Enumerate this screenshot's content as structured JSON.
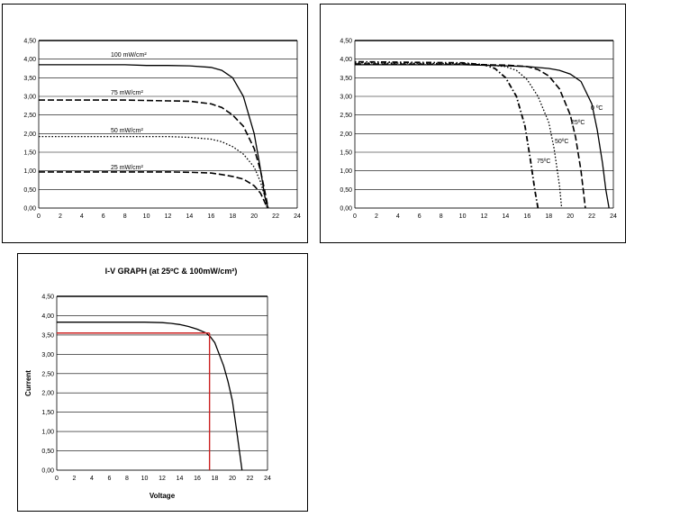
{
  "chart_data": [
    {
      "type": "line",
      "title": "",
      "xlabel": "",
      "ylabel": "",
      "xlim": [
        0,
        24
      ],
      "ylim": [
        0,
        4.5
      ],
      "x_ticks": [
        "0",
        "2",
        "4",
        "6",
        "8",
        "10",
        "12",
        "14",
        "16",
        "18",
        "20",
        "22",
        "24"
      ],
      "y_ticks": [
        "0,00",
        "0,50",
        "1,00",
        "1,50",
        "2,00",
        "2,50",
        "3,00",
        "3,50",
        "4,00",
        "4,50"
      ],
      "grid": "horizontal",
      "series": [
        {
          "name": "100 mW/cm²",
          "style": "solid",
          "points": [
            [
              0,
              3.85
            ],
            [
              8,
              3.85
            ],
            [
              10,
              3.83
            ],
            [
              12,
              3.83
            ],
            [
              14,
              3.82
            ],
            [
              16,
              3.78
            ],
            [
              17,
              3.7
            ],
            [
              18,
              3.5
            ],
            [
              19,
              3.0
            ],
            [
              20,
              2.0
            ],
            [
              20.5,
              1.2
            ],
            [
              21,
              0.3
            ],
            [
              21.3,
              0
            ]
          ]
        },
        {
          "name": "75 mW/cm²",
          "style": "dashed",
          "points": [
            [
              0,
              2.9
            ],
            [
              8,
              2.9
            ],
            [
              12,
              2.88
            ],
            [
              14,
              2.87
            ],
            [
              16,
              2.8
            ],
            [
              17,
              2.7
            ],
            [
              18,
              2.5
            ],
            [
              19,
              2.2
            ],
            [
              20,
              1.6
            ],
            [
              20.6,
              1.0
            ],
            [
              21.1,
              0.3
            ],
            [
              21.3,
              0
            ]
          ]
        },
        {
          "name": "50 mW/cm²",
          "style": "dotted",
          "points": [
            [
              0,
              1.92
            ],
            [
              8,
              1.92
            ],
            [
              12,
              1.92
            ],
            [
              14,
              1.9
            ],
            [
              16,
              1.85
            ],
            [
              17,
              1.78
            ],
            [
              18,
              1.65
            ],
            [
              19,
              1.45
            ],
            [
              20,
              1.1
            ],
            [
              20.6,
              0.7
            ],
            [
              21,
              0.3
            ],
            [
              21.2,
              0
            ]
          ]
        },
        {
          "name": "25 mW/cm²",
          "style": "dashed",
          "points": [
            [
              0,
              0.97
            ],
            [
              8,
              0.97
            ],
            [
              12,
              0.97
            ],
            [
              14,
              0.96
            ],
            [
              16,
              0.94
            ],
            [
              17,
              0.9
            ],
            [
              18,
              0.85
            ],
            [
              19,
              0.78
            ],
            [
              20,
              0.6
            ],
            [
              20.6,
              0.4
            ],
            [
              21,
              0.15
            ],
            [
              21.2,
              0
            ]
          ]
        }
      ]
    },
    {
      "type": "line",
      "title": "",
      "xlabel": "",
      "ylabel": "",
      "xlim": [
        0,
        24
      ],
      "ylim": [
        0,
        4.5
      ],
      "x_ticks": [
        "0",
        "2",
        "4",
        "6",
        "8",
        "10",
        "12",
        "14",
        "16",
        "18",
        "20",
        "22",
        "24"
      ],
      "y_ticks": [
        "0,00",
        "0,50",
        "1,00",
        "1,50",
        "2,00",
        "2,50",
        "3,00",
        "3,50",
        "4,00",
        "4,50"
      ],
      "grid": "horizontal",
      "series": [
        {
          "name": "0 ºC",
          "style": "solid",
          "points": [
            [
              0,
              3.85
            ],
            [
              10,
              3.85
            ],
            [
              14,
              3.82
            ],
            [
              16,
              3.8
            ],
            [
              18,
              3.75
            ],
            [
              19,
              3.7
            ],
            [
              20,
              3.6
            ],
            [
              21,
              3.4
            ],
            [
              22,
              2.8
            ],
            [
              22.5,
              2.1
            ],
            [
              23,
              1.2
            ],
            [
              23.3,
              0.5
            ],
            [
              23.6,
              0
            ]
          ]
        },
        {
          "name": "25ºC",
          "style": "dashed",
          "points": [
            [
              0,
              3.87
            ],
            [
              10,
              3.86
            ],
            [
              14,
              3.84
            ],
            [
              16,
              3.8
            ],
            [
              17,
              3.72
            ],
            [
              18,
              3.55
            ],
            [
              19,
              3.2
            ],
            [
              20,
              2.5
            ],
            [
              20.5,
              1.9
            ],
            [
              21,
              1.0
            ],
            [
              21.2,
              0.5
            ],
            [
              21.4,
              0
            ]
          ]
        },
        {
          "name": "50ºC",
          "style": "dotted",
          "points": [
            [
              0,
              3.9
            ],
            [
              10,
              3.88
            ],
            [
              12,
              3.85
            ],
            [
              14,
              3.8
            ],
            [
              15,
              3.7
            ],
            [
              16,
              3.45
            ],
            [
              17,
              3.0
            ],
            [
              18,
              2.3
            ],
            [
              18.5,
              1.6
            ],
            [
              19,
              0.6
            ],
            [
              19.2,
              0
            ]
          ]
        },
        {
          "name": "75ºC",
          "style": "dashdot",
          "points": [
            [
              0,
              3.93
            ],
            [
              10,
              3.9
            ],
            [
              12,
              3.85
            ],
            [
              13,
              3.75
            ],
            [
              14,
              3.5
            ],
            [
              15,
              3.0
            ],
            [
              15.8,
              2.2
            ],
            [
              16.3,
              1.3
            ],
            [
              16.7,
              0.5
            ],
            [
              17,
              0
            ]
          ]
        }
      ],
      "labels": [
        "0 ºC",
        "25ºC",
        "50ºC",
        "75ºC"
      ]
    },
    {
      "type": "line",
      "title": "I-V GRAPH (at 25ºC & 100mW/cm²)",
      "xlabel": "Voltage",
      "ylabel": "Current",
      "xlim": [
        0,
        24
      ],
      "ylim": [
        0,
        4.5
      ],
      "x_ticks": [
        "0",
        "2",
        "4",
        "6",
        "8",
        "10",
        "12",
        "14",
        "16",
        "18",
        "20",
        "22",
        "24"
      ],
      "y_ticks": [
        "0,00",
        "0,50",
        "1,00",
        "1,50",
        "2,00",
        "2,50",
        "3,00",
        "3,50",
        "4,00",
        "4,50"
      ],
      "grid": "horizontal",
      "series": [
        {
          "name": "",
          "style": "solid",
          "points": [
            [
              0,
              3.83
            ],
            [
              8,
              3.83
            ],
            [
              10,
              3.83
            ],
            [
              12,
              3.82
            ],
            [
              13,
              3.8
            ],
            [
              14,
              3.77
            ],
            [
              15,
              3.72
            ],
            [
              16,
              3.65
            ],
            [
              17,
              3.55
            ],
            [
              17.5,
              3.45
            ],
            [
              18,
              3.3
            ],
            [
              18.5,
              3.0
            ],
            [
              19,
              2.7
            ],
            [
              19.5,
              2.3
            ],
            [
              20,
              1.8
            ],
            [
              20.5,
              1.0
            ],
            [
              20.8,
              0.5
            ],
            [
              21.1,
              0
            ]
          ]
        }
      ],
      "max_power_point": {
        "x": 17.4,
        "y": 3.55
      },
      "marker_color": "#cc2222"
    }
  ]
}
